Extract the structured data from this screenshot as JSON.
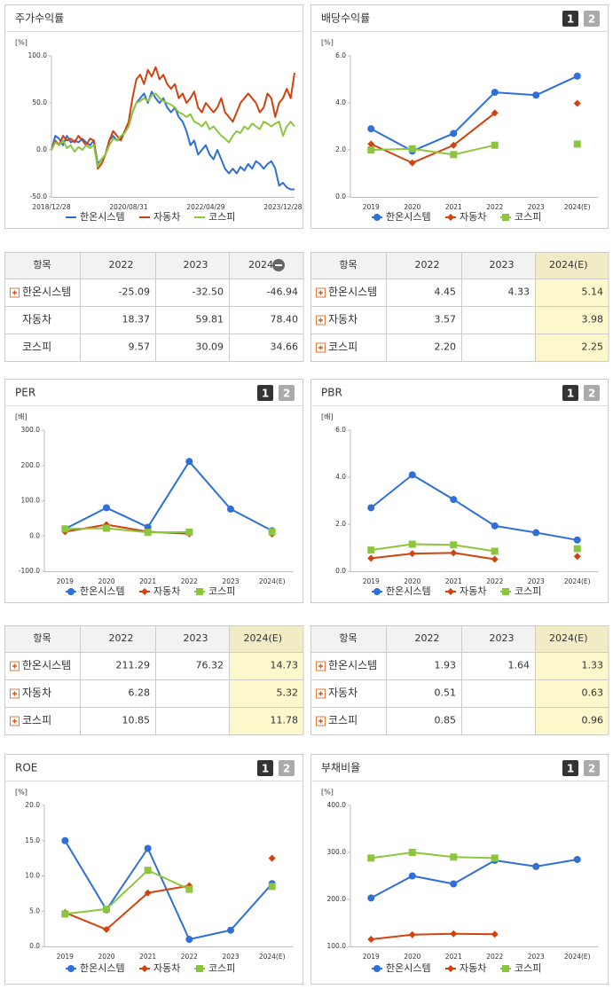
{
  "chart_data": [
    {
      "type": "line",
      "title": "주가수익률",
      "unit": "[%]",
      "categories": [
        "2018/12/28",
        null,
        null,
        null,
        null,
        null,
        null,
        null,
        null,
        null,
        null,
        null,
        null,
        null,
        null,
        null,
        null,
        null,
        null,
        null,
        "2020/08/31",
        null,
        null,
        null,
        null,
        null,
        null,
        null,
        null,
        null,
        null,
        null,
        null,
        null,
        null,
        null,
        null,
        null,
        null,
        null,
        "2022/04/29",
        null,
        null,
        null,
        null,
        null,
        null,
        null,
        null,
        null,
        null,
        null,
        null,
        null,
        null,
        null,
        null,
        null,
        null,
        null,
        "2023/12/28",
        null,
        null,
        null
      ],
      "ylim": [
        -50,
        100
      ],
      "yticks": [
        {
          "value": -50,
          "label": "-50.0"
        },
        {
          "value": 0,
          "label": "0.0"
        },
        {
          "value": 50,
          "label": "50.0"
        },
        {
          "value": 100,
          "label": "100.0"
        }
      ],
      "series": [
        {
          "name": "한온시스템",
          "color": "#2e6fd8",
          "values": [
            0,
            15,
            12,
            5,
            15,
            8,
            10,
            8,
            12,
            8,
            5,
            10,
            -15,
            -10,
            -5,
            10,
            15,
            10,
            12,
            20,
            25,
            40,
            50,
            55,
            60,
            50,
            62,
            55,
            50,
            55,
            45,
            40,
            45,
            35,
            30,
            20,
            5,
            10,
            -5,
            0,
            5,
            -5,
            -10,
            0,
            -10,
            -20,
            -25,
            -20,
            -25,
            -18,
            -22,
            -15,
            -20,
            -12,
            -15,
            -20,
            -15,
            -12,
            -20,
            -38,
            -35,
            -40,
            -42,
            -42
          ]
        },
        {
          "name": "자동차",
          "color": "#d2420e",
          "values": [
            0,
            10,
            5,
            15,
            10,
            12,
            8,
            15,
            10,
            5,
            12,
            10,
            -20,
            -15,
            -5,
            10,
            20,
            15,
            10,
            20,
            30,
            55,
            75,
            80,
            70,
            85,
            78,
            88,
            75,
            80,
            70,
            65,
            70,
            55,
            60,
            50,
            55,
            62,
            45,
            40,
            50,
            45,
            40,
            45,
            55,
            40,
            35,
            30,
            40,
            50,
            55,
            60,
            55,
            50,
            40,
            45,
            60,
            55,
            35,
            50,
            55,
            65,
            55,
            82
          ]
        },
        {
          "name": "코스피",
          "color": "#8cc63e",
          "values": [
            0,
            8,
            5,
            10,
            2,
            5,
            -2,
            3,
            0,
            5,
            2,
            5,
            -18,
            -10,
            -5,
            5,
            12,
            10,
            15,
            18,
            25,
            40,
            50,
            52,
            55,
            52,
            58,
            60,
            55,
            52,
            50,
            48,
            45,
            40,
            38,
            35,
            38,
            30,
            28,
            25,
            30,
            22,
            25,
            20,
            15,
            12,
            8,
            15,
            20,
            18,
            25,
            22,
            28,
            25,
            22,
            30,
            28,
            25,
            28,
            30,
            15,
            25,
            30,
            25
          ]
        }
      ]
    },
    {
      "type": "line",
      "title": "배당수익률",
      "unit": "[%]",
      "pages": [
        "1",
        "2"
      ],
      "categories": [
        "2019",
        "2020",
        "2021",
        "2022",
        "2023",
        "2024(E)"
      ],
      "ylim": [
        0,
        6
      ],
      "yticks": [
        {
          "value": 0,
          "label": "0.0"
        },
        {
          "value": 2,
          "label": "2.0"
        },
        {
          "value": 4,
          "label": "4.0"
        },
        {
          "value": 6,
          "label": "6.0"
        }
      ],
      "series": [
        {
          "name": "한온시스템",
          "color": "#2e6fd8",
          "marker": "circle",
          "values": [
            2.9,
            1.95,
            2.7,
            4.45,
            4.33,
            5.14
          ]
        },
        {
          "name": "자동차",
          "color": "#d2420e",
          "marker": "diamond",
          "values": [
            2.25,
            1.45,
            2.2,
            3.57,
            null,
            3.98
          ]
        },
        {
          "name": "코스피",
          "color": "#8cc63e",
          "marker": "square",
          "values": [
            2.0,
            2.05,
            1.8,
            2.2,
            null,
            2.25
          ]
        }
      ]
    },
    {
      "type": "line",
      "title": "PER",
      "unit": "[배]",
      "pages": [
        "1",
        "2"
      ],
      "categories": [
        "2019",
        "2020",
        "2021",
        "2022",
        "2023",
        "2024(E)"
      ],
      "ylim": [
        -100,
        300
      ],
      "yticks": [
        {
          "value": -100,
          "label": "-100.0"
        },
        {
          "value": 0,
          "label": "0.0"
        },
        {
          "value": 100,
          "label": "100.0"
        },
        {
          "value": 200,
          "label": "200.0"
        },
        {
          "value": 300,
          "label": "300.0"
        }
      ],
      "series": [
        {
          "name": "한온시스템",
          "color": "#2e6fd8",
          "marker": "circle",
          "values": [
            20,
            80,
            25,
            211.29,
            76.32,
            14.73
          ]
        },
        {
          "name": "자동차",
          "color": "#d2420e",
          "marker": "diamond",
          "values": [
            12,
            32,
            12,
            6.28,
            null,
            5.32
          ]
        },
        {
          "name": "코스피",
          "color": "#8cc63e",
          "marker": "square",
          "values": [
            20,
            22,
            10,
            10.85,
            null,
            11.78
          ]
        }
      ]
    },
    {
      "type": "line",
      "title": "PBR",
      "unit": "[배]",
      "pages": [
        "1",
        "2"
      ],
      "categories": [
        "2019",
        "2020",
        "2021",
        "2022",
        "2023",
        "2024(E)"
      ],
      "ylim": [
        0,
        6
      ],
      "yticks": [
        {
          "value": 0,
          "label": "0.0"
        },
        {
          "value": 2,
          "label": "2.0"
        },
        {
          "value": 4,
          "label": "4.0"
        },
        {
          "value": 6,
          "label": "6.0"
        }
      ],
      "series": [
        {
          "name": "한온시스템",
          "color": "#2e6fd8",
          "marker": "circle",
          "values": [
            2.7,
            4.1,
            3.05,
            1.93,
            1.64,
            1.33
          ]
        },
        {
          "name": "자동차",
          "color": "#d2420e",
          "marker": "diamond",
          "values": [
            0.55,
            0.75,
            0.78,
            0.51,
            null,
            0.63
          ]
        },
        {
          "name": "코스피",
          "color": "#8cc63e",
          "marker": "square",
          "values": [
            0.9,
            1.15,
            1.12,
            0.85,
            null,
            0.96
          ]
        }
      ]
    },
    {
      "type": "line",
      "title": "ROE",
      "unit": "[%]",
      "pages": [
        "1",
        "2"
      ],
      "categories": [
        "2019",
        "2020",
        "2021",
        "2022",
        "2023",
        "2024(E)"
      ],
      "ylim": [
        0,
        20
      ],
      "yticks": [
        {
          "value": 0,
          "label": "0.0"
        },
        {
          "value": 5,
          "label": "5.0"
        },
        {
          "value": 10,
          "label": "10.0"
        },
        {
          "value": 15,
          "label": "15.0"
        },
        {
          "value": 20,
          "label": "20.0"
        }
      ],
      "series": [
        {
          "name": "한온시스템",
          "color": "#2e6fd8",
          "marker": "circle",
          "values": [
            15,
            5.2,
            13.9,
            1.0,
            2.3,
            8.9
          ]
        },
        {
          "name": "자동차",
          "color": "#d2420e",
          "marker": "diamond",
          "values": [
            4.8,
            2.4,
            7.6,
            8.6,
            null,
            12.5
          ]
        },
        {
          "name": "코스피",
          "color": "#8cc63e",
          "marker": "square",
          "values": [
            4.6,
            5.3,
            10.8,
            8.1,
            null,
            8.5
          ]
        }
      ]
    },
    {
      "type": "line",
      "title": "부채비율",
      "unit": "[%]",
      "pages": [
        "1",
        "2"
      ],
      "categories": [
        "2019",
        "2020",
        "2021",
        "2022",
        "2023",
        "2024(E)"
      ],
      "ylim": [
        100,
        400
      ],
      "yticks": [
        {
          "value": 100,
          "label": "100.0"
        },
        {
          "value": 200,
          "label": "200.0"
        },
        {
          "value": 300,
          "label": "300.0"
        },
        {
          "value": 400,
          "label": "400.0"
        }
      ],
      "series": [
        {
          "name": "한온시스템",
          "color": "#2e6fd8",
          "marker": "circle",
          "values": [
            203,
            250,
            233,
            283,
            270,
            285
          ]
        },
        {
          "name": "자동차",
          "color": "#d2420e",
          "marker": "diamond",
          "values": [
            115,
            125,
            127,
            126,
            null,
            null
          ]
        },
        {
          "name": "코스피",
          "color": "#8cc63e",
          "marker": "square",
          "values": [
            288,
            300,
            290,
            288,
            null,
            null
          ]
        }
      ]
    }
  ],
  "tables": [
    {
      "header": [
        "항목",
        "2022",
        "2023",
        "2024"
      ],
      "collapsible_header": true,
      "highlight": false,
      "rows": [
        {
          "label": "한온시스템",
          "expandable": true,
          "cells": [
            "-25.09",
            "-32.50",
            "-46.94"
          ]
        },
        {
          "label": "자동차",
          "expandable": false,
          "cells": [
            "18.37",
            "59.81",
            "78.40"
          ]
        },
        {
          "label": "코스피",
          "expandable": false,
          "cells": [
            "9.57",
            "30.09",
            "34.66"
          ]
        }
      ]
    },
    {
      "header": [
        "항목",
        "2022",
        "2023",
        "2024(E)"
      ],
      "collapsible_header": false,
      "highlight": true,
      "rows": [
        {
          "label": "한온시스템",
          "expandable": true,
          "cells": [
            "4.45",
            "4.33",
            "5.14"
          ]
        },
        {
          "label": "자동차",
          "expandable": true,
          "cells": [
            "3.57",
            null,
            "3.98"
          ]
        },
        {
          "label": "코스피",
          "expandable": true,
          "cells": [
            "2.20",
            null,
            "2.25"
          ]
        }
      ]
    },
    {
      "header": [
        "항목",
        "2022",
        "2023",
        "2024(E)"
      ],
      "collapsible_header": false,
      "highlight": true,
      "rows": [
        {
          "label": "한온시스템",
          "expandable": true,
          "cells": [
            "211.29",
            "76.32",
            "14.73"
          ]
        },
        {
          "label": "자동차",
          "expandable": true,
          "cells": [
            "6.28",
            null,
            "5.32"
          ]
        },
        {
          "label": "코스피",
          "expandable": true,
          "cells": [
            "10.85",
            null,
            "11.78"
          ]
        }
      ]
    },
    {
      "header": [
        "항목",
        "2022",
        "2023",
        "2024(E)"
      ],
      "collapsible_header": false,
      "highlight": true,
      "rows": [
        {
          "label": "한온시스템",
          "expandable": true,
          "cells": [
            "1.93",
            "1.64",
            "1.33"
          ]
        },
        {
          "label": "자동차",
          "expandable": true,
          "cells": [
            "0.51",
            null,
            "0.63"
          ]
        },
        {
          "label": "코스피",
          "expandable": true,
          "cells": [
            "0.85",
            null,
            "0.96"
          ]
        }
      ]
    }
  ]
}
